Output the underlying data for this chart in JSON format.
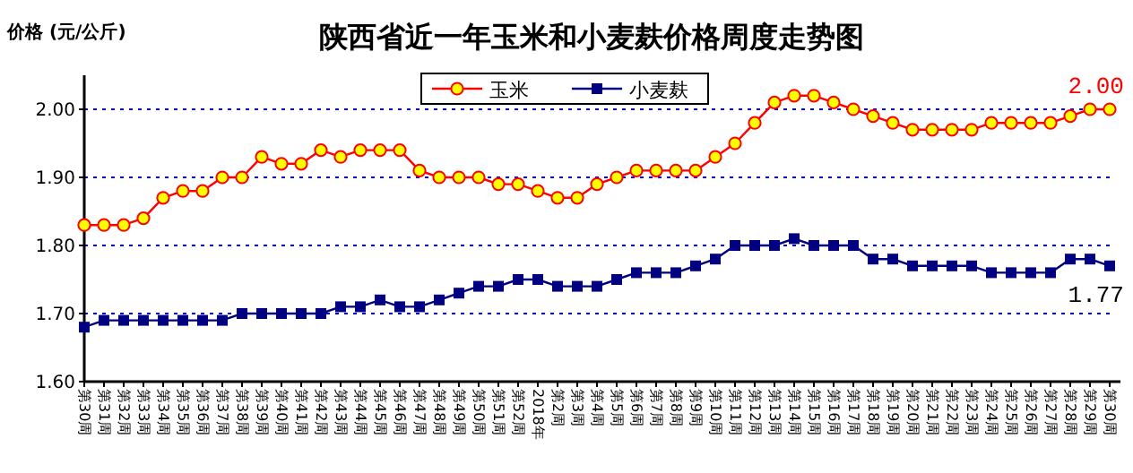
{
  "chart_data": {
    "type": "line",
    "title": "陕西省近一年玉米和小麦麸价格周度走势图",
    "ylabel": "价格 (元/公斤)",
    "categories": [
      "第30周",
      "第31周",
      "第32周",
      "第33周",
      "第34周",
      "第35周",
      "第36周",
      "第37周",
      "第38周",
      "第39周",
      "第40周",
      "第41周",
      "第42周",
      "第43周",
      "第44周",
      "第45周",
      "第46周",
      "第47周",
      "第48周",
      "第49周",
      "第50周",
      "第51周",
      "第52周",
      "2018年",
      "第2周",
      "第3周",
      "第4周",
      "第5周",
      "第6周",
      "第7周",
      "第8周",
      "第9周",
      "第10周",
      "第11周",
      "第12周",
      "第13周",
      "第14周",
      "第15周",
      "第16周",
      "第17周",
      "第18周",
      "第19周",
      "第20周",
      "第21周",
      "第22周",
      "第23周",
      "第24周",
      "第25周",
      "第26周",
      "第27周",
      "第28周",
      "第29周",
      "第30周"
    ],
    "series": [
      {
        "name": "玉米",
        "color": "#ff0000",
        "marker": "circle",
        "values": [
          1.83,
          1.83,
          1.83,
          1.84,
          1.87,
          1.88,
          1.88,
          1.9,
          1.9,
          1.93,
          1.92,
          1.92,
          1.94,
          1.93,
          1.94,
          1.94,
          1.94,
          1.91,
          1.9,
          1.9,
          1.9,
          1.89,
          1.89,
          1.88,
          1.87,
          1.87,
          1.89,
          1.9,
          1.91,
          1.91,
          1.91,
          1.91,
          1.93,
          1.95,
          1.98,
          2.01,
          2.02,
          2.02,
          2.01,
          2.0,
          1.99,
          1.98,
          1.97,
          1.97,
          1.97,
          1.97,
          1.98,
          1.98,
          1.98,
          1.98,
          1.99,
          2.0,
          2.0
        ],
        "value_labels": [
          null,
          null,
          null,
          null,
          null,
          null,
          null,
          null,
          null,
          null,
          null,
          null,
          null,
          null,
          null,
          null,
          null,
          null,
          null,
          null,
          null,
          null,
          null,
          null,
          null,
          null,
          null,
          null,
          null,
          null,
          null,
          null,
          null,
          null,
          null,
          null,
          null,
          null,
          null,
          null,
          null,
          null,
          null,
          null,
          null,
          null,
          null,
          null,
          null,
          null,
          null,
          null,
          "2.00"
        ]
      },
      {
        "name": "小麦麸",
        "color": "#000080",
        "marker": "square",
        "values": [
          1.68,
          1.69,
          1.69,
          1.69,
          1.69,
          1.69,
          1.69,
          1.69,
          1.7,
          1.7,
          1.7,
          1.7,
          1.7,
          1.71,
          1.71,
          1.72,
          1.71,
          1.71,
          1.72,
          1.73,
          1.74,
          1.74,
          1.75,
          1.75,
          1.74,
          1.74,
          1.74,
          1.75,
          1.76,
          1.76,
          1.76,
          1.77,
          1.78,
          1.8,
          1.8,
          1.8,
          1.81,
          1.8,
          1.8,
          1.8,
          1.78,
          1.78,
          1.77,
          1.77,
          1.77,
          1.77,
          1.76,
          1.76,
          1.76,
          1.76,
          1.78,
          1.78,
          1.77
        ],
        "value_labels": [
          null,
          null,
          null,
          null,
          null,
          null,
          null,
          null,
          null,
          null,
          null,
          null,
          null,
          null,
          null,
          null,
          null,
          null,
          null,
          null,
          null,
          null,
          null,
          null,
          null,
          null,
          null,
          null,
          null,
          null,
          null,
          null,
          null,
          null,
          null,
          null,
          null,
          null,
          null,
          null,
          null,
          null,
          null,
          null,
          null,
          null,
          null,
          null,
          null,
          null,
          null,
          null,
          "1.77"
        ]
      }
    ],
    "ylim": [
      1.6,
      2.05
    ],
    "yticks": [
      {
        "value": 1.6,
        "label": "1.60"
      },
      {
        "value": 1.7,
        "label": "1.70"
      },
      {
        "value": 1.8,
        "label": "1.80"
      },
      {
        "value": 1.9,
        "label": "1.90"
      },
      {
        "value": 2.0,
        "label": "2.00"
      }
    ],
    "grid": "y",
    "legend": "top",
    "line_style": "solid"
  }
}
